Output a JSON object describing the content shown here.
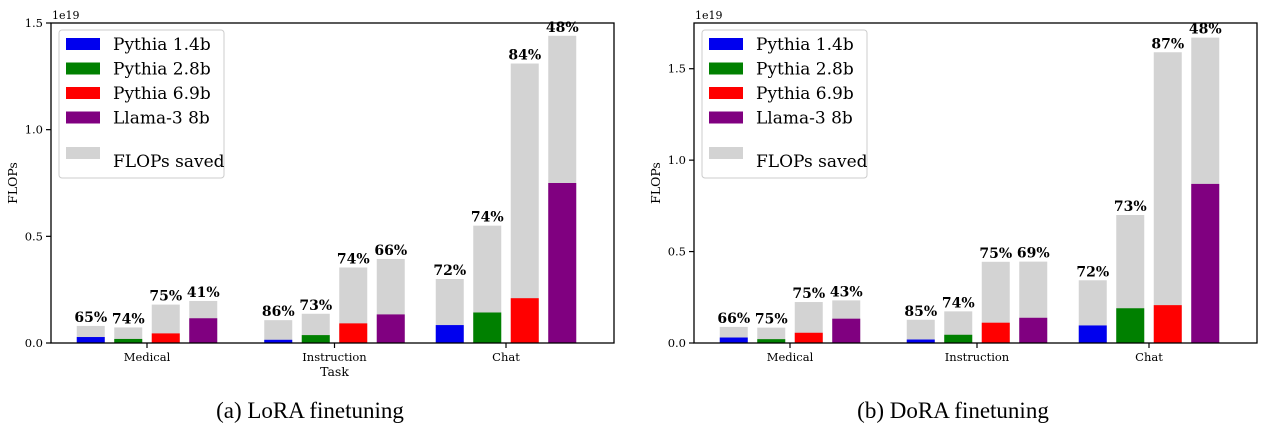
{
  "chart_data": [
    {
      "type": "bar",
      "caption": "(a) LoRA finetuning",
      "xlabel": "Task",
      "ylabel": "FLOPs",
      "exponent_label": "1e19",
      "ylim": [
        0,
        1.5
      ],
      "yticks": [
        "0.0",
        "0.5",
        "1.0",
        "1.5"
      ],
      "ytick_values": [
        0,
        0.5,
        1.0,
        1.5
      ],
      "categories": [
        "Medical",
        "Instruction",
        "Chat"
      ],
      "saved_label": "FLOPs saved",
      "series": [
        {
          "name": "Pythia 1.4b",
          "color": "#0000ee",
          "used": [
            0.028,
            0.015,
            0.084
          ],
          "total": [
            0.08,
            0.107,
            0.3
          ],
          "saved_pct": [
            "65%",
            "86%",
            "72%"
          ]
        },
        {
          "name": "Pythia 2.8b",
          "color": "#008000",
          "used": [
            0.019,
            0.037,
            0.143
          ],
          "total": [
            0.073,
            0.137,
            0.55
          ],
          "saved_pct": [
            "74%",
            "73%",
            "74%"
          ]
        },
        {
          "name": "Pythia 6.9b",
          "color": "#ff0000",
          "used": [
            0.045,
            0.092,
            0.21
          ],
          "total": [
            0.18,
            0.354,
            1.31
          ],
          "saved_pct": [
            "75%",
            "74%",
            "84%"
          ]
        },
        {
          "name": "Llama-3 8b",
          "color": "#800080",
          "used": [
            0.116,
            0.134,
            0.75
          ],
          "total": [
            0.197,
            0.394,
            1.44
          ],
          "saved_pct": [
            "41%",
            "66%",
            "48%"
          ]
        }
      ]
    },
    {
      "type": "bar",
      "caption": "(b) DoRA finetuning",
      "xlabel": "",
      "ylabel": "FLOPs",
      "exponent_label": "1e19",
      "ylim": [
        0,
        1.75
      ],
      "yticks": [
        "0.0",
        "0.5",
        "1.0",
        "1.5"
      ],
      "ytick_values": [
        0,
        0.5,
        1.0,
        1.5
      ],
      "categories": [
        "Medical",
        "Instruction",
        "Chat"
      ],
      "saved_label": "FLOPs saved",
      "series": [
        {
          "name": "Pythia 1.4b",
          "color": "#0000ee",
          "used": [
            0.03,
            0.019,
            0.096
          ],
          "total": [
            0.088,
            0.127,
            0.343
          ],
          "saved_pct": [
            "66%",
            "85%",
            "72%"
          ]
        },
        {
          "name": "Pythia 2.8b",
          "color": "#008000",
          "used": [
            0.021,
            0.045,
            0.19
          ],
          "total": [
            0.084,
            0.173,
            0.7
          ],
          "saved_pct": [
            "75%",
            "74%",
            "73%"
          ]
        },
        {
          "name": "Pythia 6.9b",
          "color": "#ff0000",
          "used": [
            0.056,
            0.111,
            0.207
          ],
          "total": [
            0.224,
            0.444,
            1.59
          ],
          "saved_pct": [
            "75%",
            "75%",
            "87%"
          ]
        },
        {
          "name": "Llama-3 8b",
          "color": "#800080",
          "used": [
            0.133,
            0.138,
            0.87
          ],
          "total": [
            0.233,
            0.445,
            1.67
          ],
          "saved_pct": [
            "43%",
            "69%",
            "48%"
          ]
        }
      ]
    }
  ]
}
